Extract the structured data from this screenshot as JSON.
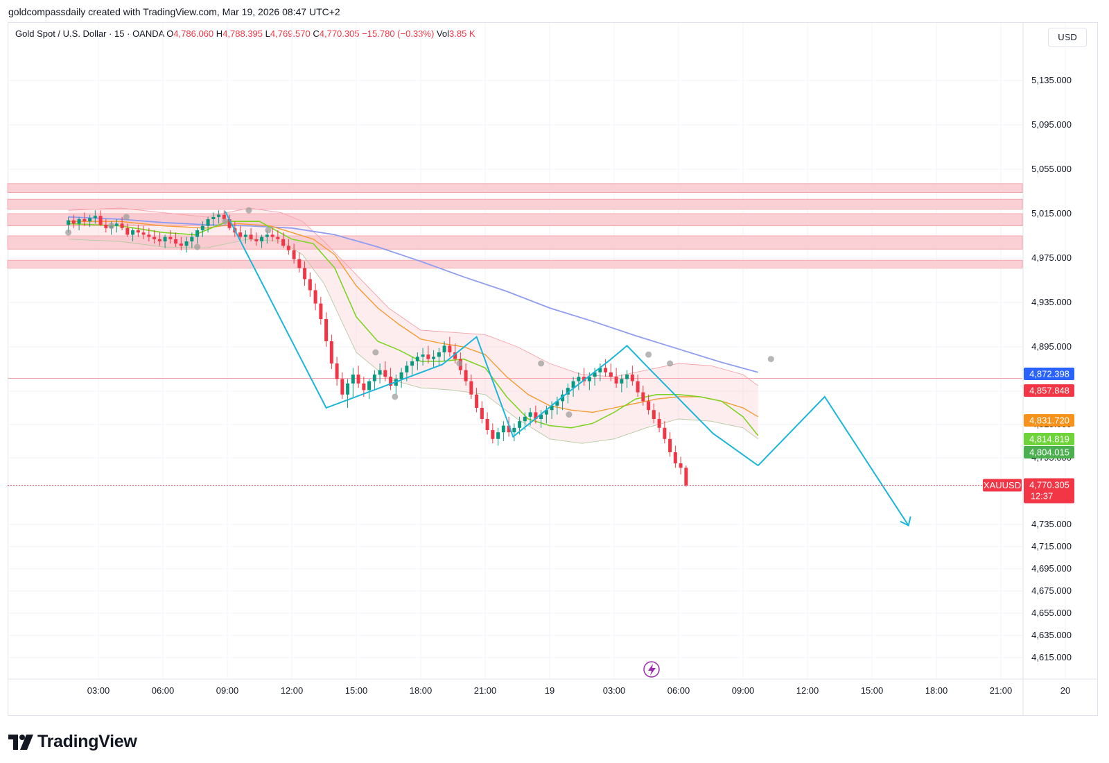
{
  "header": {
    "credit": "goldcompassdaily created with TradingView.com, Mar 19, 2026 08:47 UTC+2"
  },
  "legend": {
    "symbol": "Gold Spot / U.S. Dollar · 15 · OANDA",
    "o_label": "O",
    "o": "4,786.060",
    "h_label": "H",
    "h": "4,788.395",
    "l_label": "L",
    "l": "4,769.570",
    "c_label": "C",
    "c": "4,770.305",
    "change": "−15.780 (−0.33%)",
    "vol_label": "Vol",
    "vol": "3.85 K"
  },
  "currency": "USD",
  "logo": {
    "text": "TradingView"
  },
  "colors": {
    "up": "#089981",
    "down": "#f23645",
    "zigzag": "#1ab6d9",
    "sma200": "#8e9cf2",
    "ma_fast": "#7ed321",
    "ma_slow": "#f59b2f",
    "zone": "#f9c8cc",
    "zone_border": "#f09aa1",
    "tag_blue": "#2962ff",
    "tag_red": "#f23645",
    "tag_orange": "#f7931a",
    "tag_lime": "#6ed43a",
    "tag_green": "#4caf50"
  },
  "chart_data": {
    "type": "candlestick",
    "symbol_tag": "XAUUSD",
    "timeframe": "15",
    "ylim": [
      4605,
      5175
    ],
    "y_ticks": [
      "5,135.000",
      "5,095.000",
      "5,055.000",
      "5,015.000",
      "4,975.000",
      "4,935.000",
      "4,895.000",
      "4,855.000",
      "4,825.000",
      "4,795.000",
      "4,735.000",
      "4,715.000",
      "4,695.000",
      "4,675.000",
      "4,655.000",
      "4,635.000",
      "4,615.000"
    ],
    "x_ticks": [
      {
        "label": "03:00",
        "t": 3
      },
      {
        "label": "06:00",
        "t": 6
      },
      {
        "label": "09:00",
        "t": 9
      },
      {
        "label": "12:00",
        "t": 12
      },
      {
        "label": "15:00",
        "t": 15
      },
      {
        "label": "18:00",
        "t": 18
      },
      {
        "label": "21:00",
        "t": 21
      },
      {
        "label": "19",
        "t": 24
      },
      {
        "label": "03:00",
        "t": 27
      },
      {
        "label": "06:00",
        "t": 30
      },
      {
        "label": "09:00",
        "t": 33
      },
      {
        "label": "12:00",
        "t": 36
      },
      {
        "label": "15:00",
        "t": 39
      },
      {
        "label": "18:00",
        "t": 42
      },
      {
        "label": "21:00",
        "t": 45
      },
      {
        "label": "20",
        "t": 48
      }
    ],
    "resistance_zones": [
      [
        5034,
        5042
      ],
      [
        5019,
        5028
      ],
      [
        5004,
        5015
      ],
      [
        4983,
        4995
      ],
      [
        4966,
        4973
      ]
    ],
    "pivots": [
      [
        1.6,
        4998
      ],
      [
        3.6,
        5004
      ],
      [
        7.6,
        4985
      ],
      [
        4.3,
        5012
      ],
      [
        8.9,
        5008
      ],
      [
        10.0,
        5018
      ],
      [
        10.9,
        5000
      ],
      [
        15.9,
        4890
      ],
      [
        16.8,
        4850
      ],
      [
        19.8,
        4880
      ],
      [
        23.6,
        4880
      ],
      [
        24.9,
        4834
      ],
      [
        28.6,
        4888
      ],
      [
        29.6,
        4880
      ],
      [
        34.3,
        4884
      ]
    ],
    "zigzag_past": [
      [
        8.9,
        5017
      ],
      [
        13.6,
        4840
      ],
      [
        19.0,
        4879
      ],
      [
        20.6,
        4904
      ],
      [
        22.3,
        4814
      ],
      [
        24.6,
        4850
      ],
      [
        26.8,
        4883
      ],
      [
        27.6,
        4896
      ],
      [
        28.6,
        4876
      ],
      [
        31.6,
        4817
      ],
      [
        33.7,
        4788
      ]
    ],
    "zigzag_projection": [
      [
        33.7,
        4788
      ],
      [
        36.8,
        4850
      ],
      [
        40.7,
        4734
      ]
    ],
    "sma200": [
      [
        1.6,
        5012
      ],
      [
        4,
        5010
      ],
      [
        6,
        5007
      ],
      [
        8,
        5005
      ],
      [
        10,
        5004
      ],
      [
        12,
        5002
      ],
      [
        14,
        4996
      ],
      [
        16,
        4985
      ],
      [
        18,
        4972
      ],
      [
        20,
        4958
      ],
      [
        22,
        4945
      ],
      [
        24,
        4930
      ],
      [
        26,
        4918
      ],
      [
        28,
        4905
      ],
      [
        30,
        4893
      ],
      [
        32,
        4881
      ],
      [
        33.7,
        4872
      ]
    ],
    "ma_fast": [
      [
        1.6,
        5006
      ],
      [
        4,
        5004
      ],
      [
        6,
        4998
      ],
      [
        7.5,
        4996
      ],
      [
        9,
        5008
      ],
      [
        10.5,
        5008
      ],
      [
        12,
        4992
      ],
      [
        13,
        4988
      ],
      [
        14,
        4966
      ],
      [
        15,
        4922
      ],
      [
        16,
        4900
      ],
      [
        17,
        4892
      ],
      [
        18,
        4882
      ],
      [
        19,
        4882
      ],
      [
        20,
        4884
      ],
      [
        21,
        4876
      ],
      [
        22,
        4850
      ],
      [
        23,
        4830
      ],
      [
        24,
        4824
      ],
      [
        25,
        4822
      ],
      [
        26,
        4826
      ],
      [
        27,
        4836
      ],
      [
        28,
        4848
      ],
      [
        29,
        4852
      ],
      [
        30,
        4852
      ],
      [
        31,
        4850
      ],
      [
        32,
        4846
      ],
      [
        33,
        4832
      ],
      [
        33.7,
        4815
      ]
    ],
    "ma_slow": [
      [
        1.6,
        5008
      ],
      [
        4,
        5008
      ],
      [
        6,
        5004
      ],
      [
        8,
        5002
      ],
      [
        9.5,
        5006
      ],
      [
        11,
        5004
      ],
      [
        12,
        4998
      ],
      [
        13,
        4992
      ],
      [
        14,
        4978
      ],
      [
        15,
        4950
      ],
      [
        16,
        4930
      ],
      [
        17,
        4915
      ],
      [
        18,
        4902
      ],
      [
        19,
        4898
      ],
      [
        20,
        4895
      ],
      [
        21,
        4888
      ],
      [
        22,
        4868
      ],
      [
        23,
        4852
      ],
      [
        24,
        4842
      ],
      [
        25,
        4838
      ],
      [
        26,
        4836
      ],
      [
        27,
        4840
      ],
      [
        28,
        4844
      ],
      [
        29,
        4848
      ],
      [
        30,
        4850
      ],
      [
        31,
        4850
      ],
      [
        32,
        4846
      ],
      [
        33,
        4840
      ],
      [
        33.7,
        4832
      ]
    ],
    "band_upper": [
      [
        1.6,
        5018
      ],
      [
        4,
        5020
      ],
      [
        6,
        5016
      ],
      [
        8,
        5012
      ],
      [
        10,
        5020
      ],
      [
        11.5,
        5016
      ],
      [
        12.5,
        5008
      ],
      [
        13.5,
        4990
      ],
      [
        15,
        4960
      ],
      [
        16.5,
        4930
      ],
      [
        18,
        4910
      ],
      [
        19.5,
        4908
      ],
      [
        21,
        4906
      ],
      [
        22.5,
        4895
      ],
      [
        24,
        4880
      ],
      [
        25.5,
        4870
      ],
      [
        27,
        4868
      ],
      [
        28.5,
        4874
      ],
      [
        30,
        4880
      ],
      [
        31.5,
        4878
      ],
      [
        33,
        4870
      ],
      [
        33.7,
        4860
      ]
    ],
    "band_lower": [
      [
        1.6,
        4992
      ],
      [
        4,
        4990
      ],
      [
        6,
        4985
      ],
      [
        8,
        4984
      ],
      [
        10,
        4992
      ],
      [
        11.5,
        4990
      ],
      [
        12.5,
        4978
      ],
      [
        13.5,
        4952
      ],
      [
        15,
        4890
      ],
      [
        16.5,
        4866
      ],
      [
        18,
        4858
      ],
      [
        19.5,
        4856
      ],
      [
        21,
        4852
      ],
      [
        22.5,
        4830
      ],
      [
        24,
        4812
      ],
      [
        25.5,
        4808
      ],
      [
        27,
        4812
      ],
      [
        28.5,
        4822
      ],
      [
        30,
        4830
      ],
      [
        31.5,
        4828
      ],
      [
        33,
        4822
      ],
      [
        33.7,
        4812
      ]
    ],
    "ohlc": [
      [
        1.6,
        5005,
        5012,
        4998,
        5009
      ],
      [
        1.85,
        5009,
        5014,
        5002,
        5006
      ],
      [
        2.1,
        5006,
        5012,
        5000,
        5010
      ],
      [
        2.35,
        5010,
        5016,
        5004,
        5008
      ],
      [
        2.6,
        5008,
        5014,
        5003,
        5011
      ],
      [
        2.85,
        5011,
        5018,
        5006,
        5013
      ],
      [
        3.1,
        5013,
        5018,
        5004,
        5005
      ],
      [
        3.35,
        5005,
        5010,
        4998,
        5002
      ],
      [
        3.6,
        5002,
        5008,
        4996,
        5004
      ],
      [
        3.85,
        5004,
        5010,
        4998,
        5006
      ],
      [
        4.1,
        5006,
        5012,
        5000,
        5002
      ],
      [
        4.35,
        5002,
        5006,
        4994,
        4996
      ],
      [
        4.6,
        4996,
        5002,
        4990,
        5000
      ],
      [
        4.85,
        5000,
        5005,
        4994,
        4998
      ],
      [
        5.1,
        4998,
        5004,
        4992,
        4996
      ],
      [
        5.35,
        4996,
        5002,
        4990,
        4994
      ],
      [
        5.6,
        4994,
        5000,
        4988,
        4992
      ],
      [
        5.85,
        4992,
        4998,
        4986,
        4990
      ],
      [
        6.1,
        4990,
        4996,
        4984,
        4994
      ],
      [
        6.35,
        4994,
        5000,
        4988,
        4992
      ],
      [
        6.6,
        4992,
        4998,
        4985,
        4988
      ],
      [
        6.85,
        4988,
        4994,
        4982,
        4986
      ],
      [
        7.1,
        4986,
        4994,
        4980,
        4990
      ],
      [
        7.35,
        4990,
        4998,
        4984,
        4994
      ],
      [
        7.6,
        4994,
        5002,
        4988,
        5000
      ],
      [
        7.85,
        5000,
        5008,
        4994,
        5004
      ],
      [
        8.1,
        5004,
        5012,
        4998,
        5010
      ],
      [
        8.35,
        5010,
        5016,
        5004,
        5012
      ],
      [
        8.6,
        5012,
        5018,
        5006,
        5014
      ],
      [
        8.85,
        5014,
        5018,
        5008,
        5010
      ],
      [
        9.1,
        5010,
        5014,
        5000,
        5002
      ],
      [
        9.35,
        5002,
        5008,
        4994,
        4998
      ],
      [
        9.6,
        4998,
        5004,
        4990,
        4994
      ],
      [
        9.85,
        4994,
        5000,
        4988,
        4996
      ],
      [
        10.1,
        4996,
        5002,
        4990,
        4992
      ],
      [
        10.35,
        4992,
        4998,
        4986,
        4990
      ],
      [
        10.6,
        4990,
        4996,
        4984,
        4994
      ],
      [
        10.85,
        4994,
        5000,
        4988,
        4996
      ],
      [
        11.1,
        4996,
        5002,
        4990,
        4994
      ],
      [
        11.35,
        4994,
        5000,
        4988,
        4992
      ],
      [
        11.6,
        4992,
        4998,
        4984,
        4986
      ],
      [
        11.85,
        4986,
        4992,
        4978,
        4982
      ],
      [
        12.1,
        4982,
        4988,
        4970,
        4974
      ],
      [
        12.35,
        4974,
        4980,
        4962,
        4966
      ],
      [
        12.6,
        4966,
        4972,
        4950,
        4956
      ],
      [
        12.85,
        4956,
        4962,
        4940,
        4946
      ],
      [
        13.1,
        4946,
        4952,
        4928,
        4934
      ],
      [
        13.35,
        4934,
        4940,
        4915,
        4920
      ],
      [
        13.6,
        4920,
        4926,
        4895,
        4900
      ],
      [
        13.85,
        4900,
        4906,
        4875,
        4880
      ],
      [
        14.1,
        4880,
        4886,
        4860,
        4866
      ],
      [
        14.35,
        4866,
        4872,
        4848,
        4852
      ],
      [
        14.6,
        4852,
        4866,
        4840,
        4862
      ],
      [
        14.85,
        4862,
        4876,
        4850,
        4870
      ],
      [
        15.1,
        4870,
        4878,
        4858,
        4862
      ],
      [
        15.35,
        4862,
        4868,
        4850,
        4856
      ],
      [
        15.6,
        4856,
        4866,
        4848,
        4864
      ],
      [
        15.85,
        4864,
        4874,
        4856,
        4870
      ],
      [
        16.1,
        4870,
        4880,
        4862,
        4874
      ],
      [
        16.35,
        4874,
        4882,
        4864,
        4868
      ],
      [
        16.6,
        4868,
        4876,
        4856,
        4860
      ],
      [
        16.85,
        4860,
        4870,
        4852,
        4866
      ],
      [
        17.1,
        4866,
        4876,
        4858,
        4872
      ],
      [
        17.35,
        4872,
        4882,
        4864,
        4878
      ],
      [
        17.6,
        4878,
        4886,
        4870,
        4882
      ],
      [
        17.85,
        4882,
        4890,
        4874,
        4886
      ],
      [
        18.1,
        4886,
        4894,
        4878,
        4888
      ],
      [
        18.35,
        4888,
        4896,
        4880,
        4884
      ],
      [
        18.6,
        4884,
        4892,
        4876,
        4886
      ],
      [
        18.85,
        4886,
        4894,
        4878,
        4890
      ],
      [
        19.1,
        4890,
        4900,
        4882,
        4896
      ],
      [
        19.35,
        4896,
        4904,
        4886,
        4890
      ],
      [
        19.6,
        4890,
        4898,
        4880,
        4884
      ],
      [
        19.85,
        4884,
        4890,
        4870,
        4874
      ],
      [
        20.1,
        4874,
        4880,
        4860,
        4864
      ],
      [
        20.35,
        4864,
        4870,
        4848,
        4852
      ],
      [
        20.6,
        4852,
        4858,
        4836,
        4840
      ],
      [
        20.85,
        4840,
        4846,
        4826,
        4830
      ],
      [
        21.1,
        4830,
        4836,
        4816,
        4820
      ],
      [
        21.35,
        4820,
        4826,
        4808,
        4812
      ],
      [
        21.6,
        4812,
        4822,
        4806,
        4818
      ],
      [
        21.85,
        4818,
        4828,
        4810,
        4824
      ],
      [
        22.1,
        4824,
        4832,
        4814,
        4818
      ],
      [
        22.35,
        4818,
        4826,
        4810,
        4822
      ],
      [
        22.6,
        4822,
        4832,
        4816,
        4828
      ],
      [
        22.85,
        4828,
        4836,
        4820,
        4832
      ],
      [
        23.1,
        4832,
        4840,
        4824,
        4836
      ],
      [
        23.35,
        4836,
        4842,
        4826,
        4830
      ],
      [
        23.6,
        4830,
        4838,
        4822,
        4834
      ],
      [
        23.85,
        4834,
        4842,
        4826,
        4838
      ],
      [
        24.1,
        4838,
        4846,
        4830,
        4842
      ],
      [
        24.35,
        4842,
        4850,
        4834,
        4846
      ],
      [
        24.6,
        4846,
        4856,
        4838,
        4852
      ],
      [
        24.85,
        4852,
        4862,
        4844,
        4858
      ],
      [
        25.1,
        4858,
        4868,
        4850,
        4864
      ],
      [
        25.35,
        4864,
        4872,
        4856,
        4868
      ],
      [
        25.6,
        4868,
        4876,
        4860,
        4864
      ],
      [
        25.85,
        4864,
        4872,
        4856,
        4868
      ],
      [
        26.1,
        4868,
        4876,
        4860,
        4872
      ],
      [
        26.35,
        4872,
        4880,
        4864,
        4876
      ],
      [
        26.6,
        4876,
        4884,
        4868,
        4872
      ],
      [
        26.85,
        4872,
        4880,
        4864,
        4868
      ],
      [
        27.1,
        4868,
        4876,
        4858,
        4862
      ],
      [
        27.35,
        4862,
        4870,
        4854,
        4866
      ],
      [
        27.6,
        4866,
        4874,
        4858,
        4870
      ],
      [
        27.85,
        4870,
        4878,
        4860,
        4864
      ],
      [
        28.1,
        4864,
        4870,
        4850,
        4854
      ],
      [
        28.35,
        4854,
        4860,
        4842,
        4846
      ],
      [
        28.6,
        4846,
        4852,
        4834,
        4838
      ],
      [
        28.85,
        4838,
        4844,
        4826,
        4830
      ],
      [
        29.1,
        4830,
        4836,
        4818,
        4822
      ],
      [
        29.35,
        4822,
        4828,
        4808,
        4812
      ],
      [
        29.6,
        4812,
        4818,
        4796,
        4800
      ],
      [
        29.85,
        4800,
        4806,
        4786,
        4790
      ],
      [
        30.1,
        4790,
        4796,
        4780,
        4786
      ],
      [
        30.35,
        4786,
        4788,
        4769,
        4770
      ]
    ],
    "price_tags": [
      {
        "label": "4,872.398",
        "price": 4872.4,
        "color": "tag_blue"
      },
      {
        "label": "4,857.848",
        "price": 4857.8,
        "color": "tag_red"
      },
      {
        "label": "4,831.720",
        "price": 4831.7,
        "color": "tag_orange"
      },
      {
        "label": "4,814.819",
        "price": 4814.8,
        "color": "tag_lime"
      },
      {
        "label": "4,804.015",
        "price": 4804.0,
        "color": "tag_green"
      }
    ],
    "last_price": {
      "label": "4,770.305",
      "price": 4770.3,
      "countdown": "12:37"
    }
  }
}
